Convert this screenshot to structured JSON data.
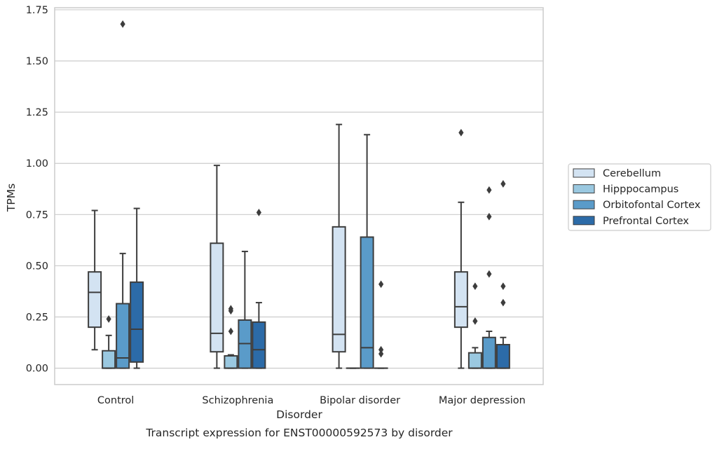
{
  "caption": "Transcript expression for ENST00000592573 by disorder",
  "colors": {
    "background": "#ffffff",
    "grid": "#cccccc",
    "frame": "#cccccc",
    "box_edge": "#3d3d3d"
  },
  "chart_data": {
    "type": "box",
    "xlabel": "Disorder",
    "ylabel": "TPMs",
    "ylim": [
      -0.08,
      1.76
    ],
    "yticks": [
      0.0,
      0.25,
      0.5,
      0.75,
      1.0,
      1.25,
      1.5,
      1.75
    ],
    "ytick_labels": [
      "0.00",
      "0.25",
      "0.50",
      "0.75",
      "1.00",
      "1.25",
      "1.50",
      "1.75"
    ],
    "grid": "horizontal",
    "legend_position": "right",
    "categories": [
      "Control",
      "Schizophrenia",
      "Bipolar disorder",
      "Major depression"
    ],
    "series": [
      {
        "name": "Cerebellum",
        "color": "#d3e3f2",
        "boxes": [
          {
            "whislo": 0.09,
            "q1": 0.2,
            "med": 0.37,
            "q3": 0.47,
            "whishi": 0.77,
            "fliers": []
          },
          {
            "whislo": 0.0,
            "q1": 0.08,
            "med": 0.17,
            "q3": 0.61,
            "whishi": 0.99,
            "fliers": []
          },
          {
            "whislo": 0.0,
            "q1": 0.08,
            "med": 0.165,
            "q3": 0.69,
            "whishi": 1.19,
            "fliers": []
          },
          {
            "whislo": 0.0,
            "q1": 0.2,
            "med": 0.3,
            "q3": 0.47,
            "whishi": 0.81,
            "fliers": [
              1.15
            ]
          }
        ]
      },
      {
        "name": "Hipppocampus",
        "color": "#9ac8e0",
        "boxes": [
          {
            "whislo": 0.0,
            "q1": 0.0,
            "med": 0.0,
            "q3": 0.085,
            "whishi": 0.16,
            "fliers": [
              0.24
            ]
          },
          {
            "whislo": 0.0,
            "q1": 0.0,
            "med": 0.0,
            "q3": 0.06,
            "whishi": 0.065,
            "fliers": [
              0.18,
              0.28,
              0.29
            ]
          },
          {
            "whislo": 0.0,
            "q1": 0.0,
            "med": 0.0,
            "q3": 0.0,
            "whishi": 0.0,
            "fliers": []
          },
          {
            "whislo": 0.0,
            "q1": 0.0,
            "med": 0.0,
            "q3": 0.075,
            "whishi": 0.1,
            "fliers": [
              0.23,
              0.4
            ]
          }
        ]
      },
      {
        "name": "Orbitofontal Cortex",
        "color": "#5a9bc9",
        "boxes": [
          {
            "whislo": 0.0,
            "q1": 0.0,
            "med": 0.05,
            "q3": 0.315,
            "whishi": 0.56,
            "fliers": [
              1.68
            ]
          },
          {
            "whislo": 0.0,
            "q1": 0.0,
            "med": 0.12,
            "q3": 0.235,
            "whishi": 0.57,
            "fliers": []
          },
          {
            "whislo": 0.0,
            "q1": 0.0,
            "med": 0.1,
            "q3": 0.64,
            "whishi": 1.14,
            "fliers": []
          },
          {
            "whislo": 0.0,
            "q1": 0.0,
            "med": 0.0,
            "q3": 0.15,
            "whishi": 0.18,
            "fliers": [
              0.46,
              0.74,
              0.87
            ]
          }
        ]
      },
      {
        "name": "Prefrontal Cortex",
        "color": "#2c6ba8",
        "boxes": [
          {
            "whislo": 0.0,
            "q1": 0.03,
            "med": 0.19,
            "q3": 0.42,
            "whishi": 0.78,
            "fliers": []
          },
          {
            "whislo": 0.0,
            "q1": 0.0,
            "med": 0.09,
            "q3": 0.225,
            "whishi": 0.32,
            "fliers": [
              0.76
            ]
          },
          {
            "whislo": 0.0,
            "q1": 0.0,
            "med": 0.0,
            "q3": 0.0,
            "whishi": 0.0,
            "fliers": [
              0.07,
              0.09,
              0.41
            ]
          },
          {
            "whislo": 0.0,
            "q1": 0.0,
            "med": 0.0,
            "q3": 0.115,
            "whishi": 0.15,
            "fliers": [
              0.32,
              0.4,
              0.9
            ]
          }
        ]
      }
    ]
  }
}
